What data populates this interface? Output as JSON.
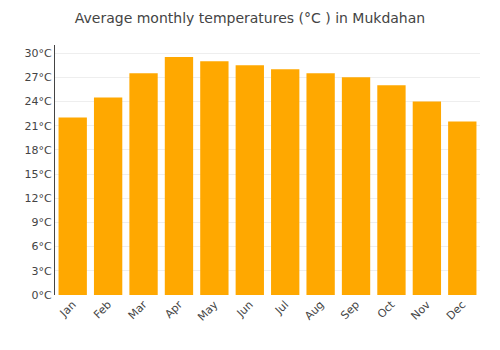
{
  "chart_data": {
    "type": "bar",
    "title": "Average monthly temperatures (°C ) in Mukdahan",
    "categories": [
      "Jan",
      "Feb",
      "Mar",
      "Apr",
      "May",
      "Jun",
      "Jul",
      "Aug",
      "Sep",
      "Oct",
      "Nov",
      "Dec"
    ],
    "values": [
      22.0,
      24.5,
      27.5,
      29.5,
      29.0,
      28.5,
      28.0,
      27.5,
      27.0,
      26.0,
      24.0,
      21.5
    ],
    "color": "#FFA800",
    "ylim": [
      0,
      31
    ],
    "yticks": [
      {
        "value": 0,
        "label": "0°C"
      },
      {
        "value": 3,
        "label": "3°C"
      },
      {
        "value": 6,
        "label": "6°C"
      },
      {
        "value": 9,
        "label": "9°C"
      },
      {
        "value": 12,
        "label": "12°C"
      },
      {
        "value": 15,
        "label": "15°C"
      },
      {
        "value": 18,
        "label": "18°C"
      },
      {
        "value": 21,
        "label": "21°C"
      },
      {
        "value": 24,
        "label": "24°C"
      },
      {
        "value": 27,
        "label": "27°C"
      },
      {
        "value": 30,
        "label": "30°C"
      }
    ],
    "grid": true
  }
}
